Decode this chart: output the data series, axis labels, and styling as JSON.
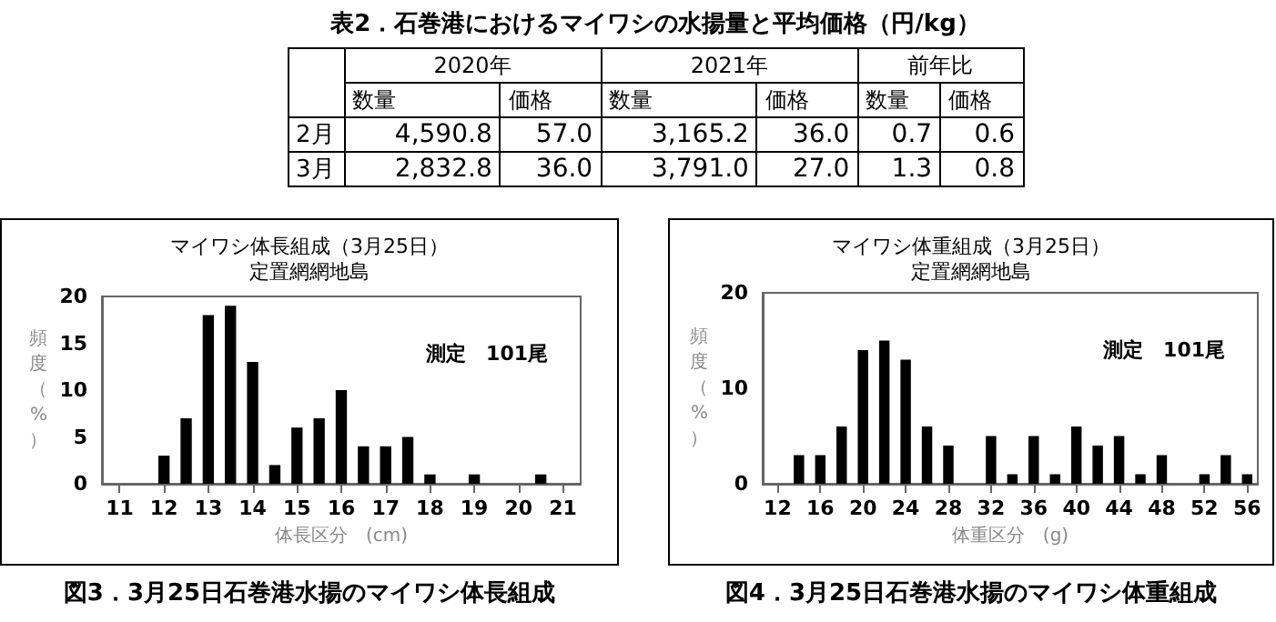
{
  "chart_data": [
    {
      "type": "other",
      "title": "表2．石巻港におけるマイワシの水揚量と平均価格（円/kg）",
      "categories": [
        "数量",
        "価格",
        "数量",
        "価格",
        "数量",
        "価格"
      ],
      "y_categories": [
        "2月",
        "3月"
      ],
      "annotations": [
        "2020年",
        "2021年",
        "前年比"
      ],
      "cell_labels": [
        [
          "4,590.8",
          "57.0",
          "3,165.2",
          "36.0",
          "0.7",
          "0.6"
        ],
        [
          "2,832.8",
          "36.0",
          "3,791.0",
          "27.0",
          "1.3",
          "0.8"
        ]
      ]
    },
    {
      "type": "histogram",
      "title": "マイワシ体長組成（3月25日）",
      "subtitle": "定置網網地島",
      "xlabel": "体長区分　(cm)",
      "ylabel": "頻度（%）",
      "annotations": [
        "測定　101尾",
        "図3．3月25日石巻港水揚のマイワシ体長組成"
      ],
      "bins": [
        11.75,
        12.25,
        12.75,
        13.25,
        13.75,
        14.25,
        14.75,
        15.25,
        15.75,
        16.25,
        16.75,
        17.25,
        17.75,
        18.25,
        18.75,
        19.25,
        19.75,
        20.25,
        20.75
      ],
      "values": [
        3,
        7,
        18,
        19,
        13,
        2,
        6,
        7,
        10,
        4,
        4,
        5,
        1,
        0,
        1,
        0,
        0,
        1
      ],
      "color": "#000000",
      "xlim": [
        10.6,
        21.4
      ],
      "xticks": [
        11,
        12,
        13,
        14,
        15,
        16,
        17,
        18,
        19,
        20,
        21
      ],
      "ylim": [
        0,
        20
      ],
      "yticks": [
        0,
        5,
        10,
        15,
        20
      ],
      "grid": false
    },
    {
      "type": "histogram",
      "title": "マイワシ体重組成（3月25日）",
      "subtitle": "定置網網地島",
      "xlabel": "体重区分　(g)",
      "ylabel": "頻度（%）",
      "annotations": [
        "測定　101尾",
        "図4．3月25日石巻港水揚のマイワシ体重組成"
      ],
      "bins": [
        13,
        15,
        17,
        19,
        21,
        23,
        25,
        27,
        29,
        31,
        33,
        35,
        37,
        39,
        41,
        43,
        45,
        47,
        49,
        51,
        53,
        55,
        57
      ],
      "values": [
        3,
        3,
        6,
        14,
        15,
        13,
        6,
        4,
        0,
        5,
        1,
        5,
        1,
        6,
        4,
        5,
        1,
        3,
        0,
        1,
        3,
        1
      ],
      "color": "#000000",
      "xlim": [
        10.6,
        57
      ],
      "xticks": [
        12,
        16,
        20,
        24,
        28,
        32,
        36,
        40,
        44,
        48,
        52,
        56
      ],
      "ylim": [
        0,
        20
      ],
      "yticks": [
        0,
        10,
        20
      ],
      "grid": false
    }
  ]
}
